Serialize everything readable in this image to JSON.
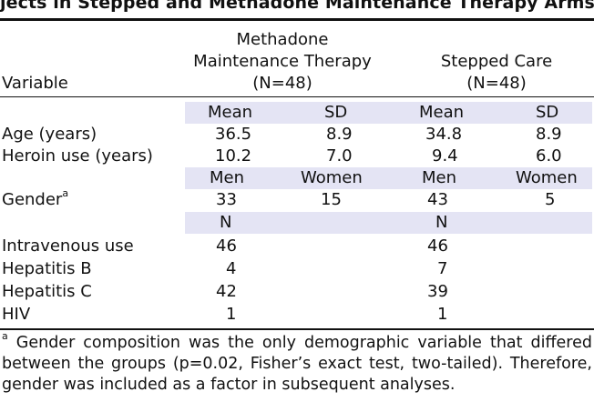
{
  "title": "jects in Stepped and Methadone Maintenance Therapy Arms",
  "header": {
    "variable": "Variable",
    "mmt_line1": "Methadone",
    "mmt_line2": "Maintenance Therapy",
    "mmt_n": "(N=48)",
    "sc_line1": "Stepped Care",
    "sc_n": "(N=48)"
  },
  "subheads": {
    "mean": "Mean",
    "sd": "SD",
    "men": "Men",
    "women": "Women",
    "n": "N"
  },
  "rows": {
    "age": {
      "label": "Age (years)",
      "mmt_mean": "36.5",
      "mmt_sd": "8.9",
      "sc_mean": "34.8",
      "sc_sd": "8.9"
    },
    "heroin": {
      "label": "Heroin use (years)",
      "mmt_mean": "10.2",
      "mmt_sd": "7.0",
      "sc_mean": "9.4",
      "sc_sd": "6.0"
    },
    "gender": {
      "label": "Gender",
      "sup": "a",
      "mmt_men": "33",
      "mmt_women": "15",
      "sc_men": "43",
      "sc_women": "5"
    },
    "iv": {
      "label": "Intravenous use",
      "mmt": "46",
      "sc": "46"
    },
    "hepb": {
      "label": "Hepatitis B",
      "mmt": "4",
      "sc": "7"
    },
    "hepc": {
      "label": "Hepatitis C",
      "mmt": "42",
      "sc": "39"
    },
    "hiv": {
      "label": "HIV",
      "mmt": "1",
      "sc": "1"
    }
  },
  "footnote": {
    "marker": "a",
    "text": " Gender composition was the only demographic variable that differed between the groups (p=0.02, Fisher’s exact test, two-tailed). Therefore, gender was included as a factor in subsequent analyses."
  }
}
